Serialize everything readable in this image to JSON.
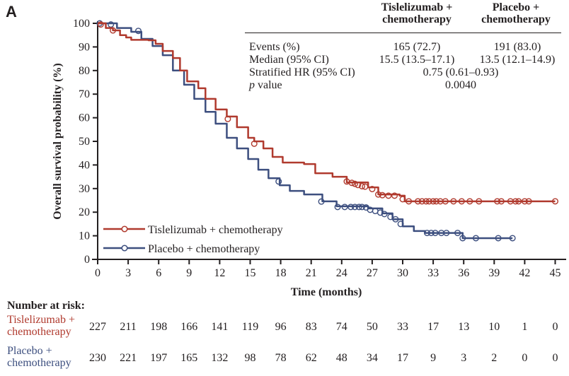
{
  "panel_label": "A",
  "stats_table": {
    "columns": [
      "Tislelizumab +\nchemotherapy",
      "Placebo +\nchemotherapy"
    ],
    "col1_line1": "Tislelizumab +",
    "col1_line2": "chemotherapy",
    "col2_line1": "Placebo +",
    "col2_line2": "chemotherapy",
    "rows": [
      {
        "label": "Events (%)",
        "tis": "165 (72.7)",
        "pla": "191 (83.0)"
      },
      {
        "label": "Median (95% CI)",
        "tis": "15.5 (13.5–17.1)",
        "pla": "13.5 (12.1–14.9)"
      },
      {
        "label": "Stratified HR (95% CI)",
        "combined": "0.75 (0.61–0.93)"
      },
      {
        "label_italic": "p",
        "label_rest": " value",
        "combined": "0.0040"
      }
    ]
  },
  "chart_data": {
    "type": "line",
    "subtype": "kaplan-meier step curve with censor marks",
    "xlabel": "Time (months)",
    "ylabel": "Overall survival probability (%)",
    "xlim": [
      0,
      45
    ],
    "ylim": [
      0,
      100
    ],
    "xticks": [
      0,
      3,
      6,
      9,
      12,
      15,
      18,
      21,
      24,
      27,
      30,
      33,
      36,
      39,
      42,
      45
    ],
    "yticks": [
      0,
      10,
      20,
      30,
      40,
      50,
      60,
      70,
      80,
      90,
      100
    ],
    "grid": false,
    "legend_position": "bottom-left",
    "series": [
      {
        "name": "Tislelizumab + chemotherapy",
        "color": "#b03a2e",
        "points": [
          [
            0,
            100
          ],
          [
            0.8,
            98
          ],
          [
            1.5,
            97
          ],
          [
            2.2,
            95
          ],
          [
            2.8,
            94
          ],
          [
            3.3,
            93
          ],
          [
            5,
            92.8
          ],
          [
            5.7,
            91.3
          ],
          [
            6.4,
            88.3
          ],
          [
            7.4,
            85.3
          ],
          [
            8.1,
            80
          ],
          [
            8.8,
            75.4
          ],
          [
            9.9,
            72.5
          ],
          [
            10.6,
            68
          ],
          [
            11.6,
            63.5
          ],
          [
            12.7,
            60.5
          ],
          [
            13.7,
            56
          ],
          [
            14.8,
            51.5
          ],
          [
            15.4,
            50
          ],
          [
            16.3,
            47
          ],
          [
            17.2,
            43.4
          ],
          [
            18.2,
            41
          ],
          [
            20.3,
            40.4
          ],
          [
            21.4,
            36.5
          ],
          [
            23.1,
            35
          ],
          [
            24.5,
            32.6
          ],
          [
            26.6,
            30.5
          ],
          [
            27.6,
            27.5
          ],
          [
            29.7,
            27
          ],
          [
            30.2,
            24.6
          ],
          [
            45,
            24.6
          ]
        ],
        "censored": [
          [
            0.3,
            99.5
          ],
          [
            1.5,
            97
          ],
          [
            12.8,
            59.5
          ],
          [
            15.4,
            49
          ],
          [
            24.5,
            33
          ],
          [
            25,
            32.4
          ],
          [
            25.3,
            32
          ],
          [
            25.6,
            31.5
          ],
          [
            26,
            31
          ],
          [
            26.3,
            30.8
          ],
          [
            27,
            29.8
          ],
          [
            27.6,
            27.5
          ],
          [
            28,
            27.2
          ],
          [
            28.6,
            27
          ],
          [
            29.2,
            27
          ],
          [
            30,
            25.5
          ],
          [
            30.6,
            24.6
          ],
          [
            31.5,
            24.6
          ],
          [
            31.9,
            24.6
          ],
          [
            32.3,
            24.6
          ],
          [
            32.6,
            24.6
          ],
          [
            33,
            24.6
          ],
          [
            33.3,
            24.6
          ],
          [
            33.7,
            24.6
          ],
          [
            34.2,
            24.6
          ],
          [
            35,
            24.6
          ],
          [
            35.8,
            24.6
          ],
          [
            36.6,
            24.6
          ],
          [
            37.5,
            24.6
          ],
          [
            39.3,
            24.6
          ],
          [
            39.7,
            24.6
          ],
          [
            40.6,
            24.6
          ],
          [
            41.1,
            24.6
          ],
          [
            41.4,
            24.6
          ],
          [
            42,
            24.6
          ],
          [
            42.4,
            24.6
          ],
          [
            45,
            24.6
          ]
        ]
      },
      {
        "name": "Placebo + chemotherapy",
        "color": "#3d4f7f",
        "points": [
          [
            0,
            100
          ],
          [
            0.8,
            100
          ],
          [
            1.9,
            98
          ],
          [
            3.3,
            96.4
          ],
          [
            4.3,
            93.4
          ],
          [
            5.4,
            90.4
          ],
          [
            6.4,
            86.5
          ],
          [
            7.4,
            80
          ],
          [
            8.5,
            74
          ],
          [
            9.5,
            68
          ],
          [
            10.6,
            62.5
          ],
          [
            11.6,
            57.5
          ],
          [
            12.7,
            51.5
          ],
          [
            13.7,
            47
          ],
          [
            14.8,
            42.5
          ],
          [
            15.8,
            38
          ],
          [
            16.8,
            34.4
          ],
          [
            17.9,
            31.4
          ],
          [
            18.9,
            29
          ],
          [
            20.3,
            27.5
          ],
          [
            22.1,
            24.6
          ],
          [
            23.5,
            22.5
          ],
          [
            26.6,
            21.6
          ],
          [
            28,
            19.5
          ],
          [
            29,
            17
          ],
          [
            30,
            14
          ],
          [
            31.1,
            12
          ],
          [
            32.2,
            11.2
          ],
          [
            35.6,
            11.2
          ],
          [
            35.9,
            9
          ],
          [
            40.8,
            9
          ]
        ],
        "censored": [
          [
            0.2,
            100
          ],
          [
            1.3,
            99.5
          ],
          [
            4,
            96.8
          ],
          [
            17.8,
            33
          ],
          [
            22,
            24.5
          ],
          [
            23.6,
            22.2
          ],
          [
            24.3,
            22.2
          ],
          [
            24.9,
            22.2
          ],
          [
            25.3,
            22.2
          ],
          [
            25.7,
            22.2
          ],
          [
            26,
            22.2
          ],
          [
            26.4,
            22
          ],
          [
            26.8,
            21
          ],
          [
            27.3,
            20.5
          ],
          [
            27.8,
            19.8
          ],
          [
            28.2,
            19.2
          ],
          [
            28.8,
            18
          ],
          [
            29.3,
            17
          ],
          [
            29.8,
            15
          ],
          [
            32.4,
            11.2
          ],
          [
            32.8,
            11.2
          ],
          [
            33.2,
            11.2
          ],
          [
            33.8,
            11.2
          ],
          [
            34.3,
            11.2
          ],
          [
            35.4,
            11.2
          ],
          [
            35.9,
            9
          ],
          [
            37.2,
            9
          ],
          [
            39.4,
            9
          ],
          [
            40.8,
            9
          ]
        ]
      }
    ]
  },
  "legend": [
    {
      "label": "Tislelizumab + chemotherapy",
      "color": "#b03a2e"
    },
    {
      "label": "Placebo + chemotherapy",
      "color": "#3d4f7f"
    }
  ],
  "risk_table": {
    "title": "Number at risk:",
    "groups": [
      {
        "line1": "Tislelizumab +",
        "line2": "chemotherapy",
        "color": "#b03a2e",
        "values": [
          227,
          211,
          198,
          166,
          141,
          119,
          96,
          83,
          74,
          50,
          33,
          17,
          13,
          10,
          1,
          0
        ]
      },
      {
        "line1": "Placebo +",
        "line2": "chemotherapy",
        "color": "#3d4f7f",
        "values": [
          230,
          221,
          197,
          165,
          132,
          98,
          78,
          62,
          48,
          34,
          17,
          9,
          3,
          2,
          0,
          0
        ]
      }
    ]
  }
}
